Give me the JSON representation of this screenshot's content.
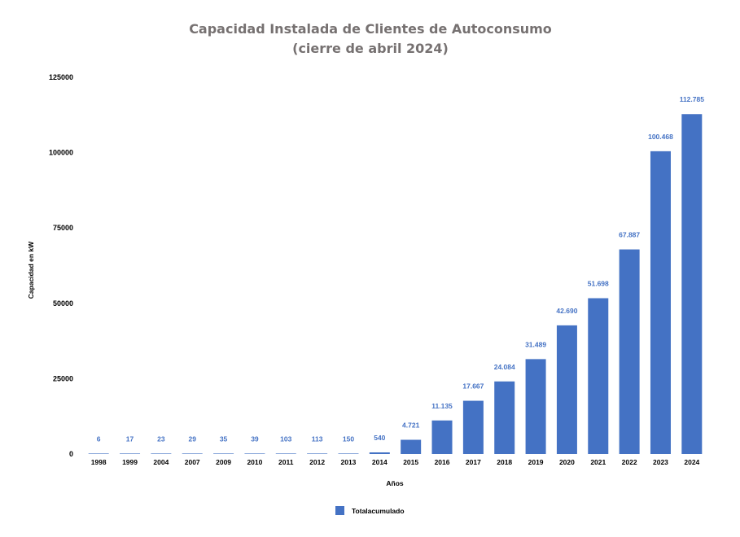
{
  "chart_data": {
    "type": "bar",
    "title": "Capacidad Instalada de Clientes de Autoconsumo",
    "subtitle": "(cierre de abril 2024)",
    "xlabel": "Años",
    "ylabel": "Capacidad en kW",
    "ylim": [
      0,
      125000
    ],
    "yticks": [
      "0",
      "25000",
      "50000",
      "75000",
      "100000",
      "125000"
    ],
    "grid": false,
    "legend_position": "bottom",
    "categories": [
      "1998",
      "1999",
      "2004",
      "2007",
      "2009",
      "2010",
      "2011",
      "2012",
      "2013",
      "2014",
      "2015",
      "2016",
      "2017",
      "2018",
      "2019",
      "2020",
      "2021",
      "2022",
      "2023",
      "2024"
    ],
    "series": [
      {
        "name": "Totalacumulado",
        "color": "#4472C4",
        "values": [
          6,
          17,
          23,
          29,
          35,
          39,
          103,
          113,
          150,
          540,
          4721,
          11135,
          17667,
          24084,
          31489,
          42690,
          51698,
          67887,
          100468,
          112785
        ],
        "labels": [
          "6",
          "17",
          "23",
          "29",
          "35",
          "39",
          "103",
          "113",
          "150",
          "540",
          "4.721",
          "11.135",
          "17.667",
          "24.084",
          "31.489",
          "42.690",
          "51.698",
          "67.887",
          "100.468",
          "112.785"
        ]
      }
    ]
  }
}
